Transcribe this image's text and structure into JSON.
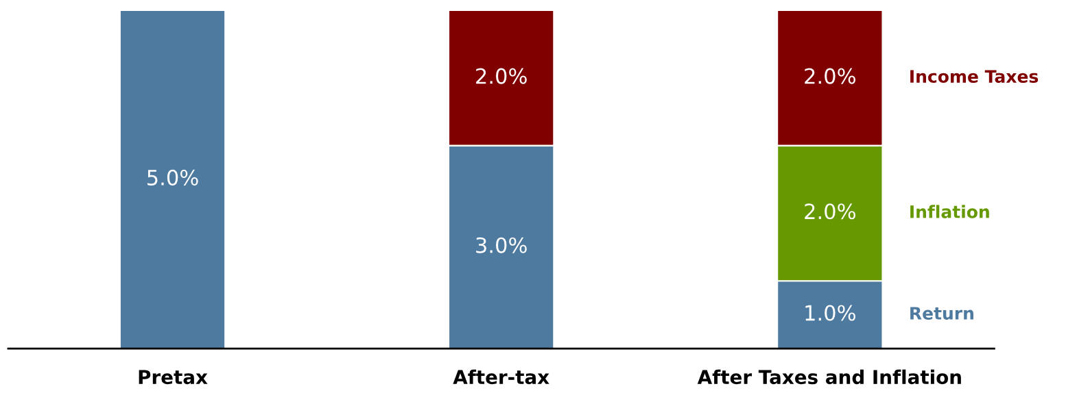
{
  "chart_data": {
    "type": "bar",
    "stacked": true,
    "categories": [
      "Pretax",
      "After-tax",
      "After Taxes and Inflation"
    ],
    "series": [
      {
        "name": "Return",
        "color": "#4e7aa0",
        "values": [
          5,
          3,
          1
        ],
        "value_labels": [
          "5.0%",
          "3.0%",
          "1.0%"
        ]
      },
      {
        "name": "Inflation",
        "color": "#669900",
        "values": [
          null,
          null,
          2
        ],
        "value_labels": [
          null,
          null,
          "2.0%"
        ]
      },
      {
        "name": "Income Taxes",
        "color": "#800000",
        "values": [
          null,
          2,
          2
        ],
        "value_labels": [
          null,
          "2.0%",
          "2.0%"
        ]
      }
    ],
    "legend": false,
    "grid": false
  }
}
